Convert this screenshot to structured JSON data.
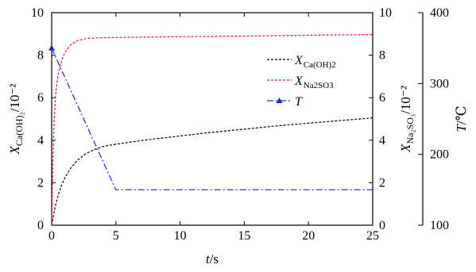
{
  "chart_data": {
    "type": "line",
    "x": {
      "label": "t/s",
      "label_italic": "t",
      "label_rest": "/s",
      "range": [
        0,
        25
      ],
      "ticks": [
        0,
        5,
        10,
        15,
        20,
        25
      ]
    },
    "y_left": {
      "label": "X_Ca(OH)2/10^-2",
      "range": [
        0,
        10
      ],
      "ticks": [
        0,
        2,
        4,
        6,
        8,
        10
      ]
    },
    "y_right_inner": {
      "label": "X_Na2SO3/10^-2",
      "range": [
        0,
        10
      ],
      "ticks": [
        0,
        2,
        4,
        6,
        8,
        10
      ]
    },
    "y_right_outer": {
      "label": "T/℃",
      "label_italic": "T",
      "label_rest": "/℃",
      "range": [
        100,
        400
      ],
      "ticks": [
        100,
        200,
        300,
        400
      ]
    },
    "legend": {
      "placement": "top-right",
      "entries": [
        {
          "text": "X",
          "sub": "Ca(OH)2",
          "color": "#000000"
        },
        {
          "text": "X",
          "sub": "Na2SO3",
          "color": "#e8141e"
        },
        {
          "text": "T",
          "sub": "",
          "color": "#1428d2"
        }
      ]
    },
    "series": [
      {
        "name": "X_Ca(OH)2",
        "axis": "left",
        "color": "#000000",
        "dash": "3,2",
        "points": [
          [
            0,
            0
          ],
          [
            0.25,
            0.8
          ],
          [
            0.5,
            1.4
          ],
          [
            0.75,
            1.85
          ],
          [
            1,
            2.2
          ],
          [
            1.5,
            2.7
          ],
          [
            2,
            3.05
          ],
          [
            2.5,
            3.3
          ],
          [
            3,
            3.47
          ],
          [
            3.5,
            3.6
          ],
          [
            4,
            3.7
          ],
          [
            4.5,
            3.76
          ],
          [
            5,
            3.81
          ],
          [
            6,
            3.9
          ],
          [
            7,
            3.98
          ],
          [
            8,
            4.06
          ],
          [
            10,
            4.2
          ],
          [
            12,
            4.34
          ],
          [
            14,
            4.46
          ],
          [
            16,
            4.58
          ],
          [
            18,
            4.7
          ],
          [
            20,
            4.8
          ],
          [
            22,
            4.9
          ],
          [
            24,
            5.0
          ],
          [
            25,
            5.05
          ]
        ]
      },
      {
        "name": "X_Na2SO3",
        "axis": "right_inner",
        "color": "#e8141e",
        "dash": "3,2",
        "points": [
          [
            0,
            0
          ],
          [
            0.1,
            3.2
          ],
          [
            0.2,
            5.0
          ],
          [
            0.3,
            6.1
          ],
          [
            0.5,
            7.1
          ],
          [
            0.75,
            7.7
          ],
          [
            1,
            8.1
          ],
          [
            1.5,
            8.5
          ],
          [
            2,
            8.68
          ],
          [
            2.5,
            8.76
          ],
          [
            3,
            8.8
          ],
          [
            4,
            8.82
          ],
          [
            6,
            8.84
          ],
          [
            10,
            8.87
          ],
          [
            15,
            8.9
          ],
          [
            20,
            8.94
          ],
          [
            25,
            8.97
          ]
        ]
      },
      {
        "name": "T",
        "axis": "right_outer",
        "color": "#1428d2",
        "dash": "8,3,2,3",
        "marker": "triangle",
        "points": [
          [
            0,
            350
          ],
          [
            5,
            150
          ],
          [
            25,
            150
          ]
        ]
      }
    ]
  }
}
